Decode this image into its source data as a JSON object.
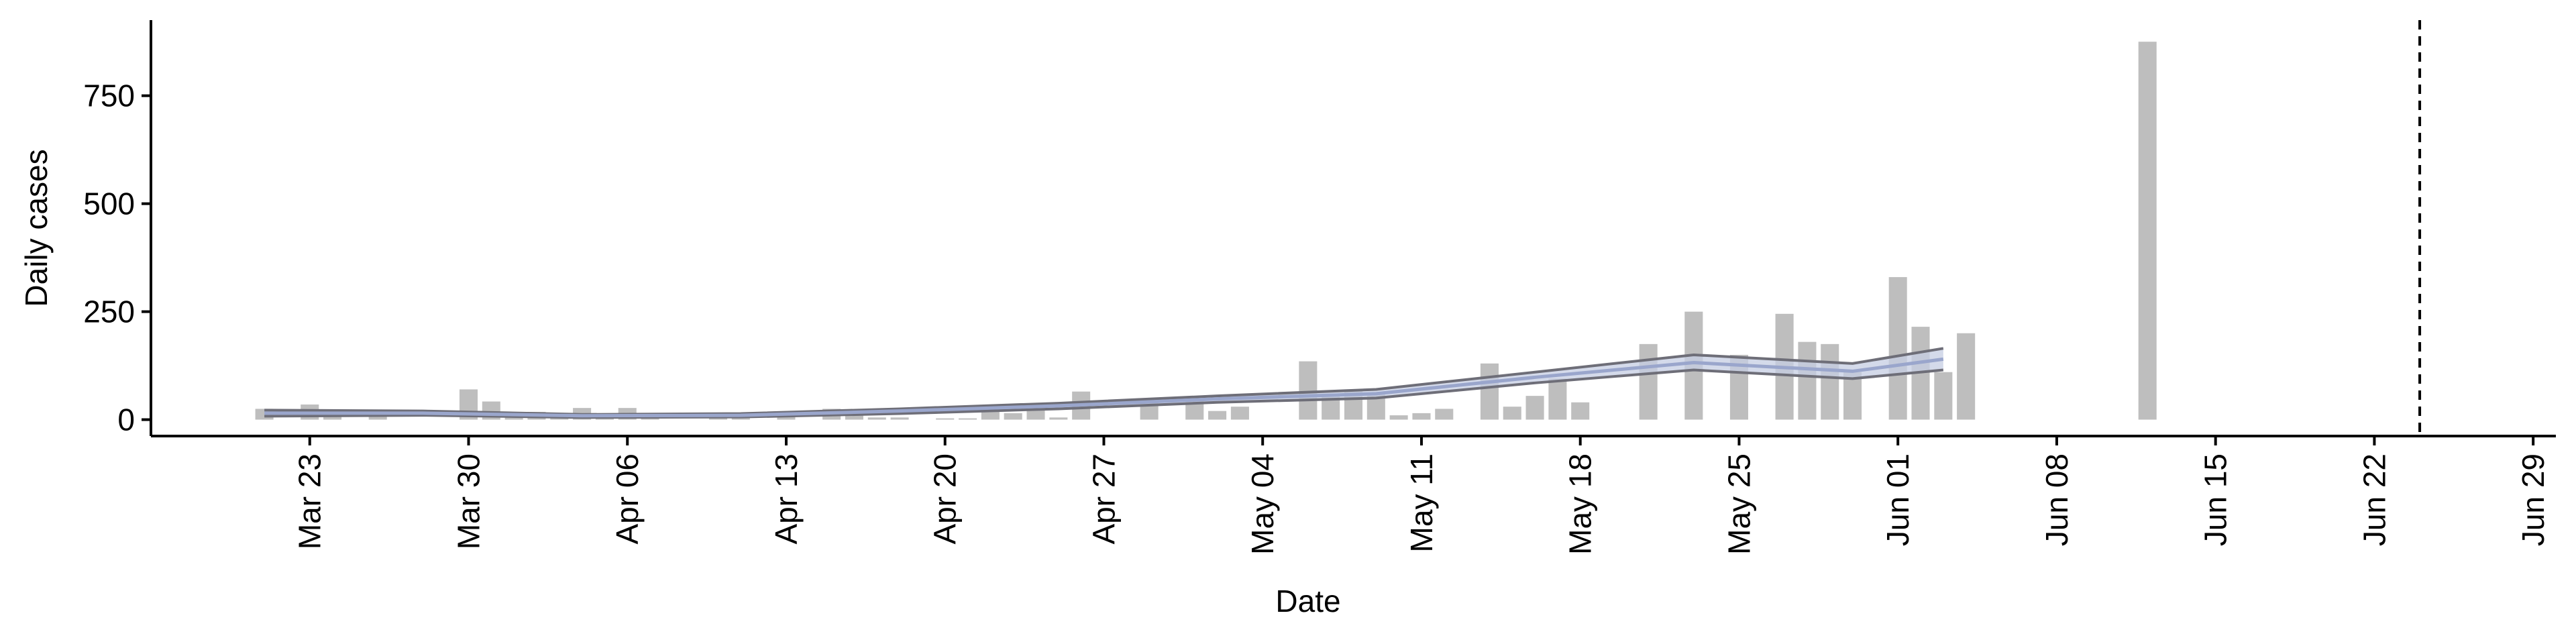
{
  "chart_data": {
    "type": "bar",
    "x_label": "Date",
    "y_label": "Daily cases",
    "x": [
      "Mar 21",
      "Mar 23",
      "Mar 24",
      "Mar 26",
      "Mar 30",
      "Mar 31",
      "Apr 01",
      "Apr 02",
      "Apr 03",
      "Apr 04",
      "Apr 05",
      "Apr 06",
      "Apr 07",
      "Apr 10",
      "Apr 11",
      "Apr 13",
      "Apr 15",
      "Apr 16",
      "Apr 17",
      "Apr 18",
      "Apr 20",
      "Apr 21",
      "Apr 22",
      "Apr 23",
      "Apr 24",
      "Apr 25",
      "Apr 26",
      "Apr 29",
      "May 01",
      "May 02",
      "May 03",
      "May 06",
      "May 07",
      "May 08",
      "May 09",
      "May 10",
      "May 11",
      "May 12",
      "May 14",
      "May 15",
      "May 16",
      "May 17",
      "May 18",
      "May 21",
      "May 23",
      "May 25",
      "May 27",
      "May 28",
      "May 29",
      "May 30",
      "Jun 01",
      "Jun 02",
      "Jun 03",
      "Jun 04",
      "Jun 12"
    ],
    "values": [
      25,
      35,
      15,
      8,
      70,
      42,
      10,
      18,
      12,
      27,
      10,
      27,
      5,
      8,
      12,
      8,
      25,
      15,
      5,
      5,
      3,
      3,
      25,
      15,
      25,
      5,
      65,
      40,
      50,
      20,
      30,
      135,
      55,
      70,
      60,
      10,
      15,
      25,
      130,
      30,
      55,
      95,
      40,
      175,
      250,
      150,
      245,
      180,
      175,
      110,
      330,
      215,
      110,
      200,
      875
    ],
    "color": "#bebebe",
    "band": {
      "x": [
        "Mar 21",
        "Mar 28",
        "Apr 04",
        "Apr 11",
        "Apr 18",
        "Apr 25",
        "May 02",
        "May 09",
        "May 16",
        "May 23",
        "May 30",
        "Jun 03"
      ],
      "lower": [
        8,
        10,
        5,
        6,
        14,
        25,
        40,
        50,
        85,
        115,
        95,
        115
      ],
      "fit": [
        15,
        15,
        9,
        10,
        20,
        32,
        48,
        60,
        98,
        132,
        112,
        140
      ],
      "upper": [
        22,
        20,
        12,
        14,
        25,
        38,
        55,
        70,
        110,
        150,
        130,
        165
      ],
      "fill_color": "#c6cde3",
      "fit_color": "#9aa6cc",
      "line_color": "#6e6e78"
    },
    "vline": "Jun 24",
    "xlim": [
      "Mar 16",
      "Jun 30"
    ],
    "xticks": [
      "Mar 23",
      "Mar 30",
      "Apr 06",
      "Apr 13",
      "Apr 20",
      "Apr 27",
      "May 04",
      "May 11",
      "May 18",
      "May 25",
      "Jun 01",
      "Jun 08",
      "Jun 15",
      "Jun 22",
      "Jun 29"
    ],
    "ylim": [
      -38,
      925
    ],
    "yticks": [
      0,
      250,
      500,
      750
    ]
  }
}
